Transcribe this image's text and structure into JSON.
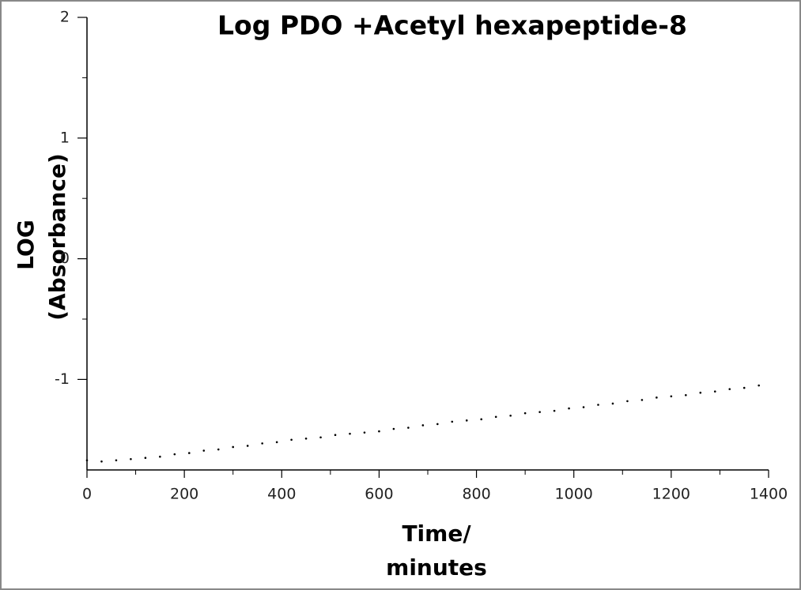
{
  "chart_data": {
    "type": "scatter",
    "title": "Log PDO +Acetyl hexapeptide-8",
    "xlabel": [
      "Time/",
      "minutes"
    ],
    "ylabel": [
      "LOG",
      "(Absorbance)"
    ],
    "x": [
      0,
      30,
      60,
      90,
      120,
      150,
      180,
      210,
      240,
      270,
      300,
      330,
      360,
      390,
      420,
      450,
      480,
      510,
      540,
      570,
      600,
      630,
      660,
      690,
      720,
      750,
      780,
      810,
      840,
      870,
      900,
      930,
      960,
      990,
      1020,
      1050,
      1080,
      1110,
      1140,
      1170,
      1200,
      1230,
      1260,
      1290,
      1320,
      1350,
      1380
    ],
    "values": [
      -1.67,
      -1.68,
      -1.67,
      -1.66,
      -1.65,
      -1.64,
      -1.62,
      -1.61,
      -1.59,
      -1.58,
      -1.56,
      -1.55,
      -1.53,
      -1.52,
      -1.5,
      -1.49,
      -1.48,
      -1.46,
      -1.45,
      -1.44,
      -1.43,
      -1.41,
      -1.4,
      -1.38,
      -1.37,
      -1.35,
      -1.34,
      -1.33,
      -1.31,
      -1.3,
      -1.28,
      -1.27,
      -1.26,
      -1.24,
      -1.23,
      -1.21,
      -1.2,
      -1.18,
      -1.17,
      -1.15,
      -1.14,
      -1.13,
      -1.11,
      -1.1,
      -1.08,
      -1.07,
      -1.05
    ],
    "color": "#000000",
    "xlim": [
      0,
      1400
    ],
    "xticks": [
      0,
      200,
      400,
      600,
      800,
      1000,
      1200,
      1400
    ],
    "ylim": [
      -1.75,
      2
    ],
    "yticks": [
      -1,
      0,
      1,
      2
    ],
    "grid": false
  }
}
